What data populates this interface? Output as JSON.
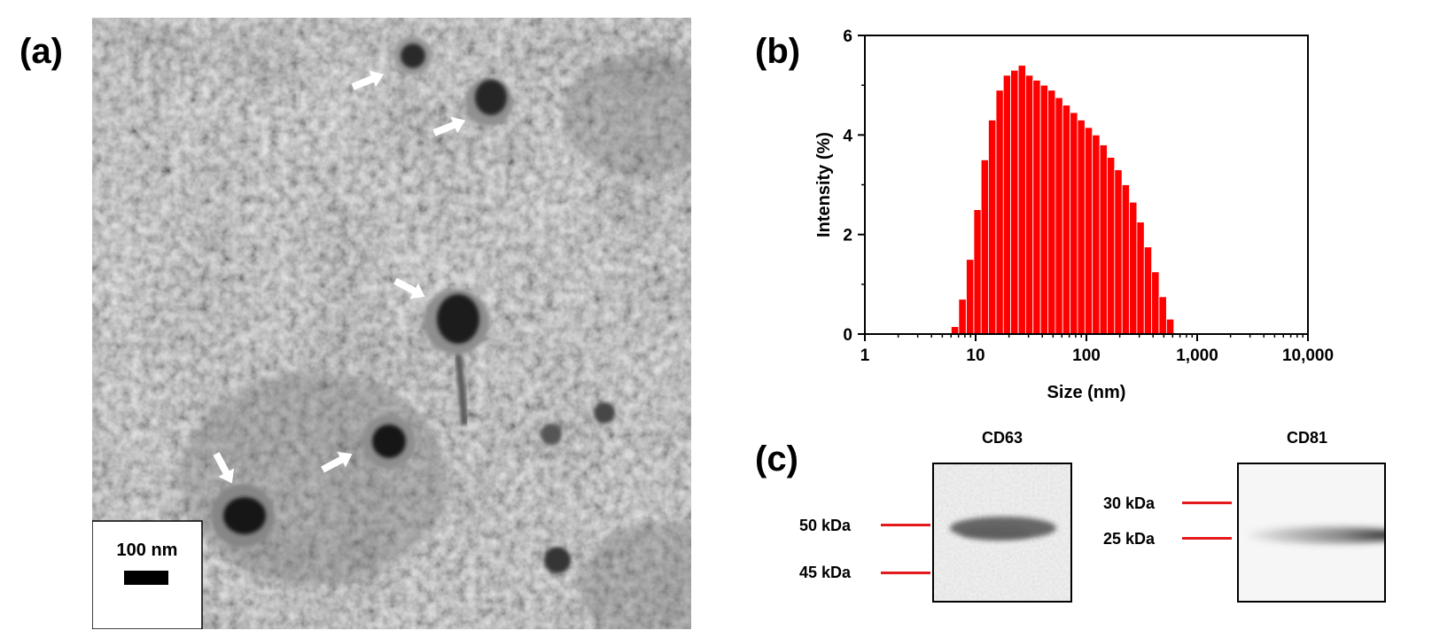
{
  "panels": {
    "a": {
      "label": "(a)",
      "scale_bar": "100 nm"
    },
    "b": {
      "label": "(b)"
    },
    "c": {
      "label": "(c)"
    }
  },
  "chart_data": {
    "type": "bar",
    "xlabel": "Size (nm)",
    "ylabel": "Intensity (%)",
    "x_scale": "log",
    "xlim": [
      1,
      10000
    ],
    "ylim": [
      0,
      6
    ],
    "x_ticks": [
      "1",
      "10",
      "100",
      "1,000",
      "10,000"
    ],
    "y_ticks": [
      "0",
      "2",
      "4",
      "6"
    ],
    "bar_color": "#ff0000",
    "x": [
      6.5,
      7.6,
      8.9,
      10.4,
      12.1,
      14.1,
      16.5,
      19.2,
      22.4,
      26.2,
      30.5,
      35.6,
      41.6,
      48.5,
      56.6,
      66.0,
      77.0,
      89.8,
      104.8,
      122.2,
      142.6,
      166.4,
      194.1,
      226.4,
      264.1,
      308.1,
      359.5,
      419.4,
      489.3,
      570.8
    ],
    "values": [
      0.15,
      0.7,
      1.5,
      2.5,
      3.5,
      4.3,
      4.9,
      5.2,
      5.3,
      5.4,
      5.2,
      5.1,
      5.0,
      4.9,
      4.75,
      4.6,
      4.45,
      4.3,
      4.15,
      4.0,
      3.8,
      3.55,
      3.3,
      3.0,
      2.65,
      2.25,
      1.75,
      1.25,
      0.75,
      0.3
    ]
  },
  "blots": [
    {
      "title": "CD63",
      "markers": [
        "50 kDa",
        "45 kDa"
      ]
    },
    {
      "title": "CD81",
      "markers": [
        "30 kDa",
        "25 kDa"
      ]
    }
  ]
}
